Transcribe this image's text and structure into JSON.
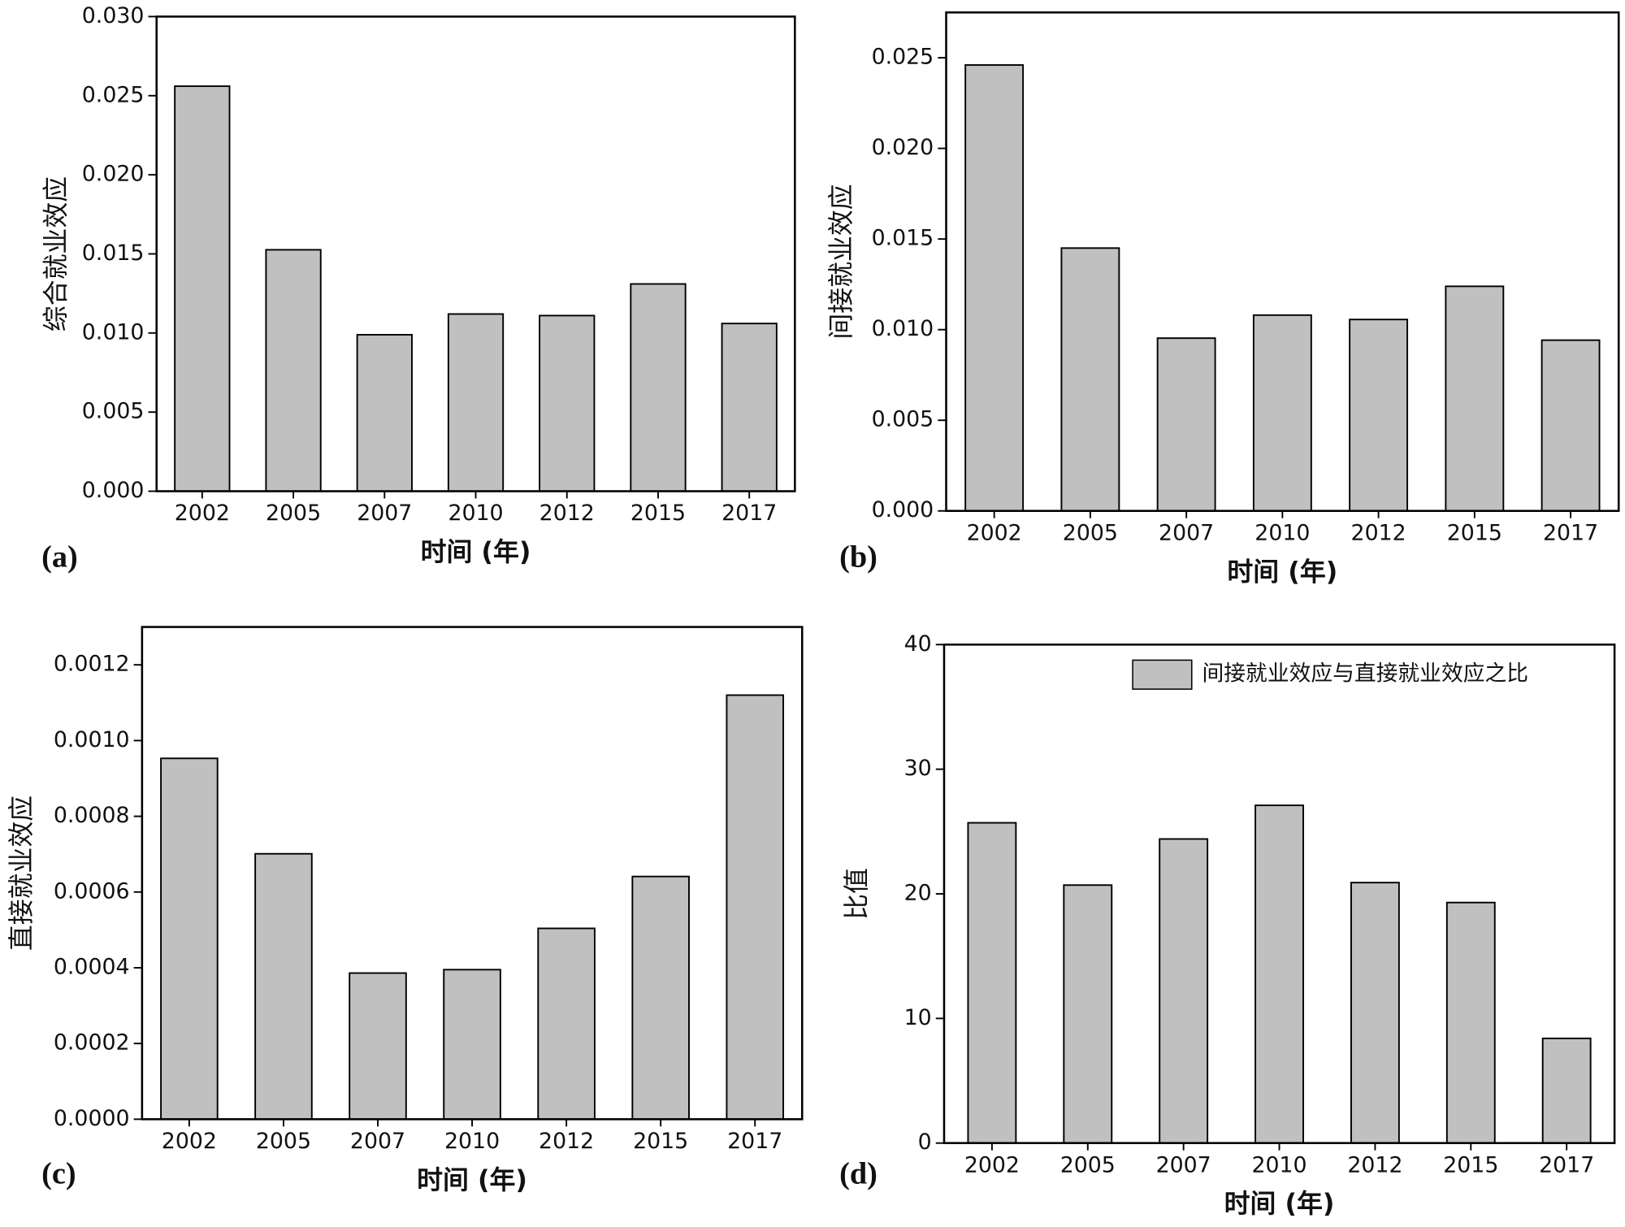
{
  "chart_data": [
    {
      "type": "bar",
      "panel": "(a)",
      "x_label": "时间 (年)",
      "y_label": "综合就业效应",
      "categories": [
        "2002",
        "2005",
        "2007",
        "2010",
        "2012",
        "2015",
        "2017"
      ],
      "values": [
        0.0256,
        0.01526,
        0.00989,
        0.0112,
        0.0111,
        0.0131,
        0.0106
      ],
      "color": "#c0c0c0",
      "ylim": [
        0,
        0.03
      ],
      "yticks": [
        {
          "value": 0,
          "label": "0.000"
        },
        {
          "value": 0.005,
          "label": "0.005"
        },
        {
          "value": 0.01,
          "label": "0.010"
        },
        {
          "value": 0.015,
          "label": "0.015"
        },
        {
          "value": 0.02,
          "label": "0.020"
        },
        {
          "value": 0.025,
          "label": "0.025"
        },
        {
          "value": 0.03,
          "label": "0.030"
        }
      ]
    },
    {
      "type": "bar",
      "panel": "(b)",
      "x_label": "时间 (年)",
      "y_label": "间接就业效应",
      "categories": [
        "2002",
        "2005",
        "2007",
        "2010",
        "2012",
        "2015",
        "2017"
      ],
      "values": [
        0.0246,
        0.0145,
        0.00953,
        0.0108,
        0.01056,
        0.01239,
        0.00942
      ],
      "color": "#c0c0c0",
      "ylim": [
        0,
        0.0275
      ],
      "yticks": [
        {
          "value": 0,
          "label": "0.000"
        },
        {
          "value": 0.005,
          "label": "0.005"
        },
        {
          "value": 0.01,
          "label": "0.010"
        },
        {
          "value": 0.015,
          "label": "0.015"
        },
        {
          "value": 0.02,
          "label": "0.020"
        },
        {
          "value": 0.025,
          "label": "0.025"
        }
      ]
    },
    {
      "type": "bar",
      "panel": "(c)",
      "x_label": "时间 (年)",
      "y_label": "直接就业效应",
      "categories": [
        "2002",
        "2005",
        "2007",
        "2010",
        "2012",
        "2015",
        "2017"
      ],
      "values": [
        0.000953,
        0.000701,
        0.000386,
        0.000395,
        0.000504,
        0.000641,
        0.00112
      ],
      "color": "#c0c0c0",
      "ylim": [
        0,
        0.0013
      ],
      "yticks": [
        {
          "value": 0,
          "label": "0.0000"
        },
        {
          "value": 0.0002,
          "label": "0.0002"
        },
        {
          "value": 0.0004,
          "label": "0.0004"
        },
        {
          "value": 0.0006,
          "label": "0.0006"
        },
        {
          "value": 0.0008,
          "label": "0.0008"
        },
        {
          "value": 0.001,
          "label": "0.0010"
        },
        {
          "value": 0.0012,
          "label": "0.0012"
        }
      ]
    },
    {
      "type": "bar",
      "panel": "(d)",
      "x_label": "时间 (年)",
      "y_label": "比值",
      "categories": [
        "2002",
        "2005",
        "2007",
        "2010",
        "2012",
        "2015",
        "2017"
      ],
      "series": [
        {
          "name": "间接就业效应与直接就业效应之比",
          "color": "#c0c0c0",
          "values": [
            25.7,
            20.7,
            24.4,
            27.1,
            20.9,
            19.3,
            8.4
          ]
        }
      ],
      "legend": "upper right",
      "ylim": [
        0,
        40
      ],
      "yticks": [
        0,
        10,
        20,
        30,
        40
      ]
    }
  ]
}
